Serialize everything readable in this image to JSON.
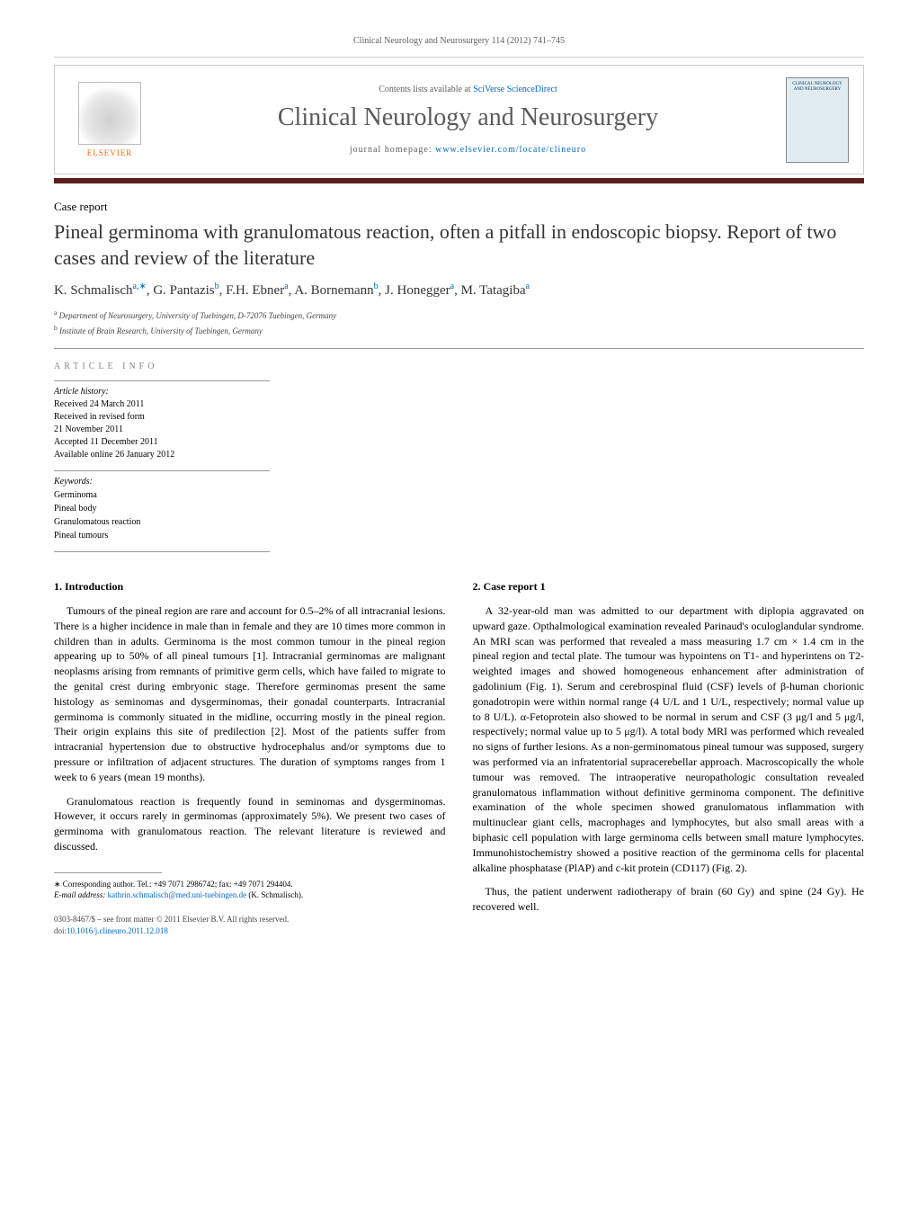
{
  "citation": "Clinical Neurology and Neurosurgery 114 (2012) 741–745",
  "header": {
    "contents_prefix": "Contents lists available at ",
    "contents_link": "SciVerse ScienceDirect",
    "journal_title": "Clinical Neurology and Neurosurgery",
    "homepage_prefix": "journal homepage: ",
    "homepage_url": "www.elsevier.com/locate/clineuro",
    "publisher_logo_text": "ELSEVIER",
    "cover_text": "CLINICAL NEUROLOGY AND NEUROSURGERY"
  },
  "article": {
    "type": "Case report",
    "title": "Pineal germinoma with granulomatous reaction, often a pitfall in endoscopic biopsy. Report of two cases and review of the literature",
    "authors_html": "K. Schmalisch",
    "author_list": [
      {
        "name": "K. Schmalisch",
        "marks": "a,∗"
      },
      {
        "name": "G. Pantazis",
        "marks": "b"
      },
      {
        "name": "F.H. Ebner",
        "marks": "a"
      },
      {
        "name": "A. Bornemann",
        "marks": "b"
      },
      {
        "name": "J. Honegger",
        "marks": "a"
      },
      {
        "name": "M. Tatagiba",
        "marks": "a"
      }
    ],
    "affiliations": [
      {
        "mark": "a",
        "text": "Department of Neurosurgery, University of Tuebingen, D-72076 Tuebingen, Germany"
      },
      {
        "mark": "b",
        "text": "Institute of Brain Research, University of Tuebingen, Germany"
      }
    ]
  },
  "info": {
    "heading": "article info",
    "history_label": "Article history:",
    "history": [
      "Received 24 March 2011",
      "Received in revised form",
      "21 November 2011",
      "Accepted 11 December 2011",
      "Available online 26 January 2012"
    ],
    "keywords_label": "Keywords:",
    "keywords": [
      "Germinoma",
      "Pineal body",
      "Granulomatous reaction",
      "Pineal tumours"
    ]
  },
  "sections": {
    "intro_heading": "1. Introduction",
    "intro_p1": "Tumours of the pineal region are rare and account for 0.5–2% of all intracranial lesions. There is a higher incidence in male than in female and they are 10 times more common in children than in adults. Germinoma is the most common tumour in the pineal region appearing up to 50% of all pineal tumours [1]. Intracranial germinomas are malignant neoplasms arising from remnants of primitive germ cells, which have failed to migrate to the genital crest during embryonic stage. Therefore germinomas present the same histology as seminomas and dysgerminomas, their gonadal counterparts. Intracranial germinoma is commonly situated in the midline, occurring mostly in the pineal region. Their origin explains this site of predilection [2]. Most of the patients suffer from intracranial hypertension due to obstructive hydrocephalus and/or symptoms due to pressure or infiltration of adjacent structures. The duration of symptoms ranges from 1 week to 6 years (mean 19 months).",
    "intro_p2": "Granulomatous reaction is frequently found in seminomas and dysgerminomas. However, it occurs rarely in germinomas (approximately 5%). We present two cases of germinoma with granulomatous reaction. The relevant literature is reviewed and discussed.",
    "case_heading": "2. Case report 1",
    "case_p1": "A 32-year-old man was admitted to our department with diplopia aggravated on upward gaze. Opthalmological examination revealed Parinaud's oculoglandular syndrome. An MRI scan was performed that revealed a mass measuring 1.7 cm × 1.4 cm in the pineal region and tectal plate. The tumour was hypointens on T1- and hyperintens on T2-weighted images and showed homogeneous enhancement after administration of gadolinium (Fig. 1). Serum and cerebrospinal fluid (CSF) levels of β-human chorionic gonadotropin were within normal range (4 U/L and 1 U/L, respectively; normal value up to 8 U/L). α-Fetoprotein also showed to be normal in serum and CSF (3 μg/l and 5 μg/l, respectively; normal value up to 5 μg/l). A total body MRI was performed which revealed no signs of further lesions. As a non-germinomatous pineal tumour was supposed, surgery was performed via an infratentorial supracerebellar approach. Macroscopically the whole tumour was removed. The intraoperative neuropathologic consultation revealed granulomatous inflammation without definitive germinoma component. The definitive examination of the whole specimen showed granulomatous inflammation with multinuclear giant cells, macrophages and lymphocytes, but also small areas with a biphasic cell population with large germinoma cells between small mature lymphocytes. Immunohistochemistry showed a positive reaction of the germinoma cells for placental alkaline phosphatase (PlAP) and c-kit protein (CD117) (Fig. 2).",
    "case_p2": "Thus, the patient underwent radiotherapy of brain (60 Gy) and spine (24 Gy). He recovered well."
  },
  "footnote": {
    "corr_label": "∗ Corresponding author. Tel.: +49 7071 2986742; fax: +49 7071 294404.",
    "email_label": "E-mail address: ",
    "email": "kathrin.schmalisch@med.uni-tuebingen.de",
    "email_suffix": " (K. Schmalisch)."
  },
  "footer": {
    "issn_line": "0303-8467/$ – see front matter © 2011 Elsevier B.V. All rights reserved.",
    "doi_prefix": "doi:",
    "doi": "10.1016/j.clineuro.2011.12.018"
  },
  "colors": {
    "link": "#0066cc",
    "maroon": "#5c1e1e",
    "orange": "#ff6600",
    "gray_text": "#606060"
  }
}
